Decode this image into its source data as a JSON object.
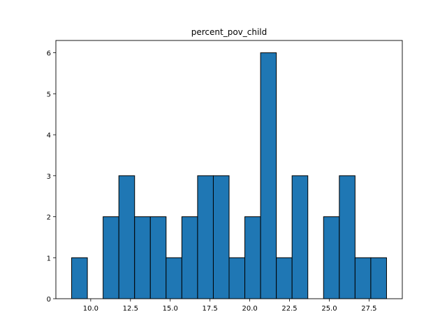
{
  "chart_data": {
    "type": "bar",
    "title": "percent_pov_child",
    "xlabel": "",
    "ylabel": "",
    "bin_edges": [
      8.8,
      9.79,
      10.78,
      11.77,
      12.76,
      13.75,
      14.74,
      15.73,
      16.72,
      17.71,
      18.7,
      19.69,
      20.68,
      21.67,
      22.66,
      23.65,
      24.64,
      25.63,
      26.62,
      27.61,
      28.6
    ],
    "values": [
      1,
      0,
      2,
      3,
      2,
      2,
      1,
      2,
      3,
      3,
      1,
      2,
      6,
      1,
      3,
      0,
      2,
      3,
      1,
      1
    ],
    "xlim": [
      7.81,
      29.59
    ],
    "ylim": [
      0,
      6.3
    ],
    "x_ticks": [
      10.0,
      12.5,
      15.0,
      17.5,
      20.0,
      22.5,
      25.0,
      27.5
    ],
    "x_tick_labels": [
      "10.0",
      "12.5",
      "15.0",
      "17.5",
      "20.0",
      "22.5",
      "25.0",
      "27.5"
    ],
    "y_ticks": [
      0,
      1,
      2,
      3,
      4,
      5,
      6
    ],
    "y_tick_labels": [
      "0",
      "1",
      "2",
      "3",
      "4",
      "5",
      "6"
    ],
    "bar_color": "#1f77b4",
    "edge_color": "#000000",
    "grid": false,
    "legend": "none"
  }
}
